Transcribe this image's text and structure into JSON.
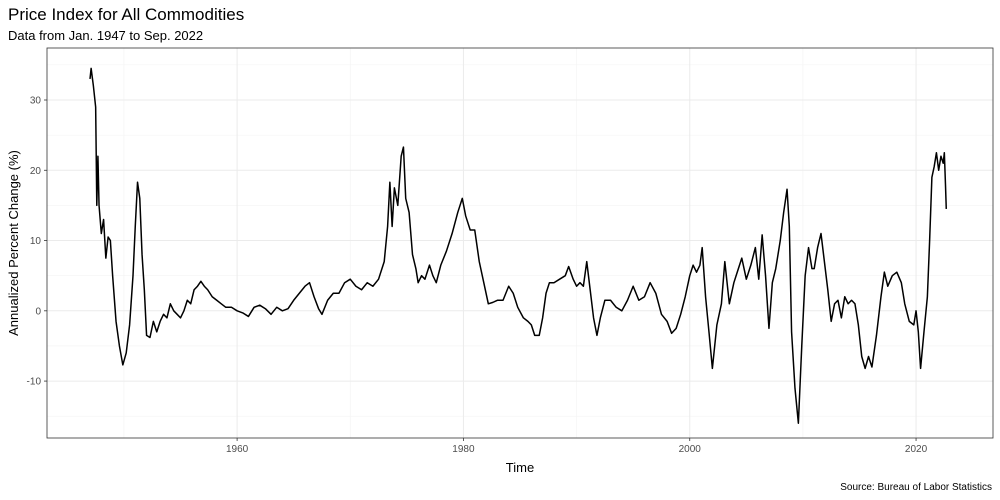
{
  "chart_data": {
    "type": "line",
    "title": "Price Index for All Commodities",
    "subtitle": "Data from Jan. 1947 to Sep. 2022",
    "x_label": "Time",
    "y_label": "Annualized Percent Change (%)",
    "caption": "Source: Bureau of Labor Statistics",
    "xlim": [
      1943.2,
      2026.8
    ],
    "ylim": [
      -18.1,
      37.4
    ],
    "xticks": [
      1960,
      1980,
      2000,
      2020
    ],
    "yticks": [
      -10,
      0,
      10,
      20,
      30
    ],
    "grid": true,
    "x": [
      1947.0,
      1947.1,
      1947.3,
      1947.5,
      1947.6,
      1947.7,
      1947.8,
      1948.0,
      1948.2,
      1948.4,
      1948.6,
      1948.8,
      1949.0,
      1949.3,
      1949.6,
      1949.9,
      1950.2,
      1950.5,
      1950.8,
      1951.0,
      1951.2,
      1951.4,
      1951.6,
      1951.8,
      1952.0,
      1952.3,
      1952.6,
      1952.9,
      1953.2,
      1953.5,
      1953.8,
      1954.1,
      1954.4,
      1954.7,
      1955.0,
      1955.3,
      1955.6,
      1955.9,
      1956.2,
      1956.5,
      1956.8,
      1957.1,
      1957.4,
      1957.8,
      1958.2,
      1958.6,
      1959.0,
      1959.5,
      1960.0,
      1960.5,
      1961.0,
      1961.5,
      1962.0,
      1962.5,
      1963.0,
      1963.5,
      1964.0,
      1964.5,
      1965.0,
      1965.5,
      1966.0,
      1966.4,
      1966.8,
      1967.2,
      1967.5,
      1968.0,
      1968.5,
      1969.0,
      1969.5,
      1970.0,
      1970.5,
      1971.0,
      1971.5,
      1972.0,
      1972.5,
      1973.0,
      1973.3,
      1973.5,
      1973.7,
      1973.9,
      1974.2,
      1974.5,
      1974.7,
      1974.9,
      1975.2,
      1975.5,
      1975.8,
      1976.0,
      1976.3,
      1976.6,
      1977.0,
      1977.3,
      1977.6,
      1978.0,
      1978.5,
      1979.0,
      1979.5,
      1979.9,
      1980.2,
      1980.6,
      1981.0,
      1981.4,
      1981.8,
      1982.2,
      1982.6,
      1983.0,
      1983.5,
      1984.0,
      1984.4,
      1984.8,
      1985.3,
      1985.7,
      1986.0,
      1986.3,
      1986.7,
      1987.0,
      1987.3,
      1987.6,
      1988.0,
      1988.5,
      1989.0,
      1989.3,
      1989.7,
      1990.0,
      1990.3,
      1990.6,
      1990.9,
      1991.2,
      1991.5,
      1991.8,
      1992.1,
      1992.5,
      1993.0,
      1993.5,
      1994.0,
      1994.5,
      1995.0,
      1995.5,
      1996.0,
      1996.5,
      1997.0,
      1997.5,
      1998.0,
      1998.4,
      1998.8,
      1999.2,
      1999.6,
      2000.0,
      2000.3,
      2000.6,
      2000.9,
      2001.1,
      2001.4,
      2001.7,
      2002.0,
      2002.4,
      2002.8,
      2003.1,
      2003.5,
      2003.9,
      2004.2,
      2004.6,
      2005.0,
      2005.4,
      2005.8,
      2006.1,
      2006.4,
      2006.7,
      2007.0,
      2007.3,
      2007.6,
      2008.0,
      2008.3,
      2008.6,
      2008.8,
      2009.0,
      2009.3,
      2009.6,
      2009.9,
      2010.2,
      2010.5,
      2010.8,
      2011.0,
      2011.3,
      2011.6,
      2011.9,
      2012.2,
      2012.5,
      2012.8,
      2013.1,
      2013.4,
      2013.7,
      2014.0,
      2014.3,
      2014.6,
      2014.9,
      2015.2,
      2015.5,
      2015.8,
      2016.1,
      2016.5,
      2016.9,
      2017.2,
      2017.5,
      2017.9,
      2018.3,
      2018.7,
      2019.0,
      2019.4,
      2019.8,
      2020.0,
      2020.2,
      2020.4,
      2020.7,
      2021.0,
      2021.2,
      2021.4,
      2021.6,
      2021.8,
      2022.0,
      2022.2,
      2022.4,
      2022.5,
      2022.6,
      2022.67
    ],
    "series": [
      {
        "name": "Annualized Percent Change",
        "color": "#000000",
        "values": [
          33,
          34.5,
          32,
          29,
          15,
          22,
          15,
          11,
          13,
          7.5,
          10.5,
          10,
          5,
          -1.5,
          -5,
          -7.7,
          -6,
          -2,
          5,
          12,
          18.3,
          16,
          8,
          3,
          -3.5,
          -3.8,
          -1.5,
          -3,
          -1.5,
          -0.5,
          -1,
          1,
          0,
          -0.5,
          -1,
          0,
          1.5,
          1,
          3,
          3.5,
          4.2,
          3.5,
          3,
          2,
          1.5,
          1,
          0.5,
          0.5,
          0,
          -0.3,
          -0.8,
          0.5,
          0.8,
          0.3,
          -0.5,
          0.5,
          0,
          0.3,
          1.5,
          2.5,
          3.5,
          4,
          2,
          0.3,
          -0.5,
          1.5,
          2.5,
          2.5,
          4,
          4.5,
          3.5,
          3,
          4,
          3.5,
          4.5,
          7,
          12,
          18.3,
          12,
          17.5,
          15,
          22,
          23.3,
          16,
          14,
          8,
          6,
          4,
          5,
          4.5,
          6.5,
          5,
          4,
          6.5,
          8.5,
          11,
          14,
          16,
          13.5,
          11.5,
          11.5,
          7,
          4,
          1,
          1.2,
          1.5,
          1.5,
          3.5,
          2.5,
          0.5,
          -1,
          -1.5,
          -2,
          -3.5,
          -3.5,
          -1,
          2.5,
          4,
          4,
          4.5,
          5,
          6.3,
          4.5,
          3.5,
          4,
          3.5,
          7,
          3,
          -1,
          -3.5,
          -1,
          1.5,
          1.5,
          0.5,
          0,
          1.5,
          3.5,
          1.5,
          2,
          4,
          2.5,
          -0.5,
          -1.5,
          -3.2,
          -2.5,
          -0.5,
          2,
          5,
          6.5,
          5.5,
          6.5,
          9,
          2,
          -3,
          -8.2,
          -2,
          1,
          7,
          1,
          4,
          5.5,
          7.5,
          4.5,
          6.5,
          9,
          4.5,
          10.8,
          5,
          -2.5,
          4,
          6,
          10,
          14,
          17.3,
          12,
          -3,
          -11,
          -16,
          -5,
          5,
          9,
          6,
          6,
          9,
          11,
          7,
          3,
          -1.5,
          1,
          1.5,
          -1,
          2,
          1,
          1.5,
          1,
          -2,
          -6.5,
          -8.2,
          -6.5,
          -8,
          -3.5,
          2,
          5.5,
          3.5,
          5,
          5.5,
          4,
          1,
          -1.5,
          -2,
          0,
          -3,
          -8.2,
          -3,
          2,
          10,
          19,
          20.5,
          22.5,
          20,
          22,
          21,
          22.5,
          18,
          14.5
        ]
      }
    ]
  }
}
